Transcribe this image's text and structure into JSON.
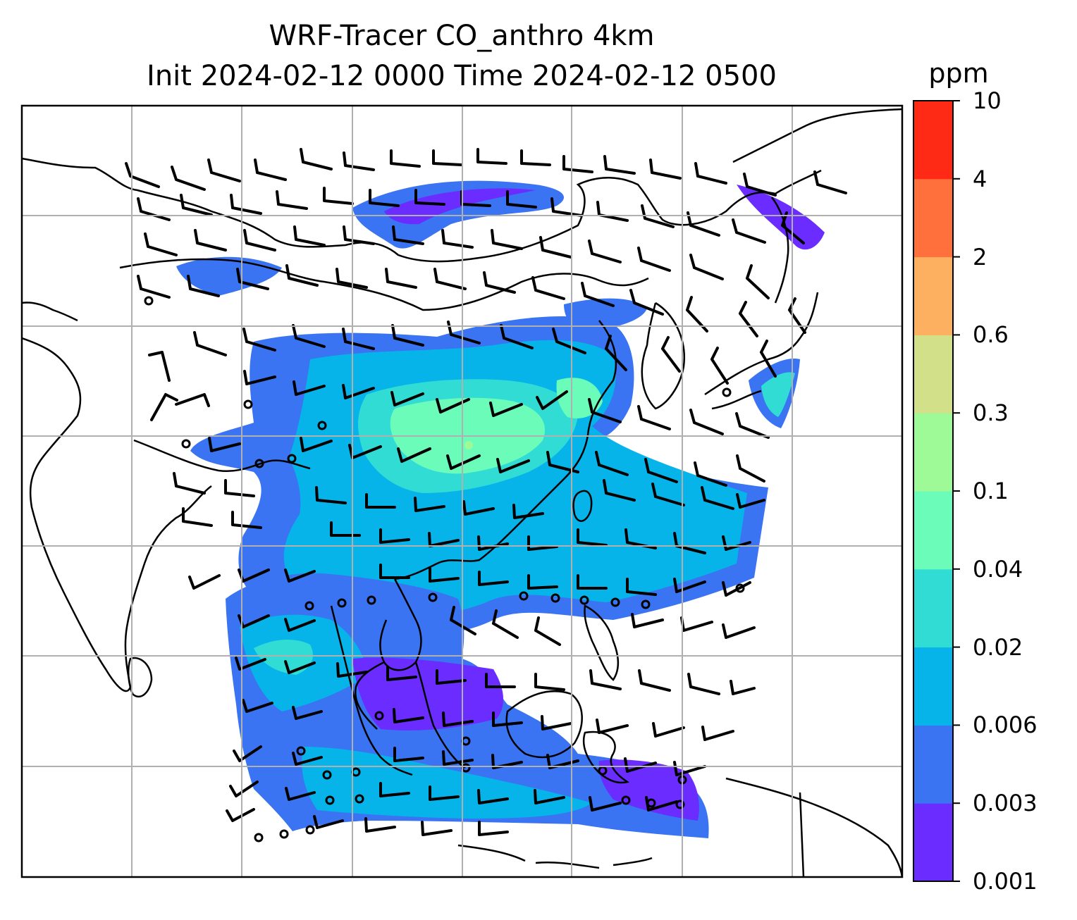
{
  "title": {
    "line1": "WRF-Tracer CO_anthro 4km",
    "line2": "Init 2024-02-12 0000 Time 2024-02-12 0500"
  },
  "colorbar": {
    "unit": "ppm",
    "ticks": [
      "0.001",
      "0.003",
      "0.006",
      "0.02",
      "0.04",
      "0.1",
      "0.3",
      "0.6",
      "2",
      "4",
      "10"
    ],
    "colors": [
      "#6a2cff",
      "#3a74f2",
      "#06b4ea",
      "#30dcd4",
      "#6cfcba",
      "#9efa96",
      "#d2e08a",
      "#fcb060",
      "#ff703c",
      "#ff2a16"
    ]
  },
  "map": {
    "field": "CO_anthro",
    "gridlines": true,
    "wind_barbs": true
  }
}
